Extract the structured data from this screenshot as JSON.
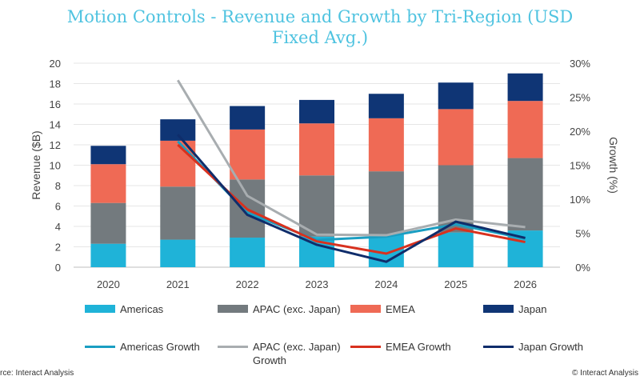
{
  "title": "Motion Controls - Revenue and Growth by Tri-Region (USD Fixed Avg.)",
  "source_left": "rce: Interact Analysis",
  "source_right": "© Interact Analysis",
  "chart_data": {
    "type": "bar",
    "stacked": true,
    "categories": [
      "2020",
      "2021",
      "2022",
      "2023",
      "2024",
      "2025",
      "2026"
    ],
    "series": [
      {
        "name": "Americas",
        "values": [
          2.3,
          2.7,
          2.9,
          3.0,
          3.2,
          3.4,
          3.6
        ],
        "color": "#1fb3d8"
      },
      {
        "name": "APAC (exc. Japan)",
        "values": [
          4.0,
          5.2,
          5.7,
          6.0,
          6.2,
          6.6,
          7.1
        ],
        "color": "#737a7e"
      },
      {
        "name": "EMEA",
        "values": [
          3.8,
          4.5,
          4.9,
          5.1,
          5.2,
          5.5,
          5.6
        ],
        "color": "#ef6a55"
      },
      {
        "name": "Japan",
        "values": [
          1.8,
          2.1,
          2.3,
          2.3,
          2.4,
          2.6,
          2.7
        ],
        "color": "#0f3575"
      }
    ],
    "growth_series": [
      {
        "name": "Americas Growth",
        "values": [
          null,
          18.5,
          8.0,
          4.0,
          4.5,
          6.3,
          4.2
        ],
        "color": "#1a9ec2"
      },
      {
        "name": "APAC (exc. Japan) Growth",
        "values": [
          null,
          27.5,
          10.5,
          4.8,
          4.7,
          7.0,
          5.9
        ],
        "color": "#a8adb0"
      },
      {
        "name": "EMEA Growth",
        "values": [
          null,
          18.0,
          8.5,
          3.8,
          2.0,
          5.7,
          3.7
        ],
        "color": "#d8311e"
      },
      {
        "name": "Japan Growth",
        "values": [
          null,
          19.5,
          7.7,
          3.3,
          0.8,
          6.7,
          4.3
        ],
        "color": "#0f2d6b"
      }
    ],
    "ylabel": "Revenue ($B)",
    "y2label": "Growth (%)",
    "ylim": [
      0,
      20
    ],
    "yticks": [
      "0",
      "2",
      "4",
      "6",
      "8",
      "10",
      "12",
      "14",
      "16",
      "18",
      "20"
    ],
    "y2lim": [
      0,
      30
    ],
    "y2ticks": [
      "0%",
      "5%",
      "10%",
      "15%",
      "20%",
      "25%",
      "30%"
    ],
    "grid": true,
    "legend_position": "bottom"
  },
  "legend": [
    {
      "label": "Americas",
      "kind": "swatch",
      "color": "#1fb3d8"
    },
    {
      "label": "APAC (exc. Japan)",
      "kind": "swatch",
      "color": "#737a7e"
    },
    {
      "label": "EMEA",
      "kind": "swatch",
      "color": "#ef6a55"
    },
    {
      "label": "Japan",
      "kind": "swatch",
      "color": "#0f3575"
    },
    {
      "label": "Americas Growth",
      "kind": "line",
      "color": "#1a9ec2"
    },
    {
      "label": "APAC (exc. Japan) Growth",
      "kind": "line",
      "color": "#a8adb0"
    },
    {
      "label": "EMEA Growth",
      "kind": "line",
      "color": "#d8311e"
    },
    {
      "label": "Japan Growth",
      "kind": "line",
      "color": "#0f2d6b"
    }
  ]
}
